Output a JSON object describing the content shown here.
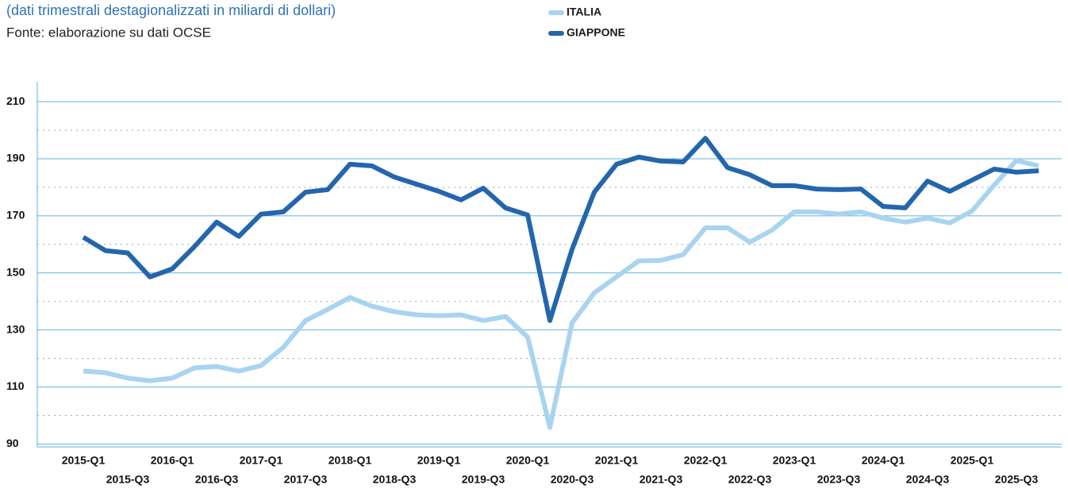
{
  "chart_data": {
    "type": "line",
    "subtitle": "(dati trimestrali destagionalizzati in miliardi di dollari)",
    "source": "Fonte: elaborazione su dati OCSE",
    "categories": [
      "2015-Q1",
      null,
      "2015-Q3",
      null,
      "2016-Q1",
      null,
      "2016-Q3",
      null,
      "2017-Q1",
      null,
      "2017-Q3",
      null,
      "2018-Q1",
      null,
      "2018-Q3",
      null,
      "2019-Q1",
      null,
      "2019-Q3",
      null,
      "2020-Q1",
      null,
      "2020-Q3",
      null,
      "2021-Q1",
      null,
      "2021-Q3",
      null,
      "2022-Q1",
      null,
      "2022-Q3",
      null,
      "2023-Q1",
      null,
      "2023-Q3",
      null,
      "2024-Q1",
      null,
      "2024-Q3",
      null,
      "2025-Q1",
      null,
      "2025-Q3",
      null
    ],
    "series": [
      {
        "name": "ITALIA",
        "color": "#a8d4f0",
        "values": [
          115.6,
          115,
          113.1,
          112.2,
          113.1,
          116.7,
          117.2,
          115.6,
          117.5,
          123.9,
          133.3,
          137.2,
          141.4,
          138.3,
          136.4,
          135.3,
          135,
          135.3,
          133.3,
          134.7,
          127.5,
          95.8,
          132.5,
          143,
          148.6,
          154.2,
          154.4,
          156.4,
          165.8,
          165.8,
          160.8,
          165,
          171.4,
          171.4,
          170.6,
          171.4,
          169.2,
          167.8,
          169.2,
          167.5,
          171.7,
          180.8,
          189.4,
          187.5
        ]
      },
      {
        "name": "GIAPPONE",
        "color": "#2466ad",
        "values": [
          162.5,
          157.8,
          157,
          148.6,
          151.4,
          159.2,
          167.8,
          162.8,
          170.6,
          171.4,
          178.3,
          179.2,
          188.1,
          187.5,
          183.6,
          181.1,
          178.6,
          175.6,
          179.7,
          172.8,
          170.3,
          133.3,
          158.3,
          178.3,
          188.1,
          190.6,
          189.2,
          188.9,
          197.2,
          186.9,
          184.4,
          180.6,
          180.6,
          179.4,
          179.2,
          179.4,
          173.3,
          172.8,
          182.2,
          178.6,
          182.5,
          186.4,
          185.3,
          185.8
        ]
      }
    ],
    "ylim": [
      89,
      217
    ],
    "yticks": [
      90,
      110,
      130,
      150,
      170,
      190,
      210
    ],
    "minor_yticks": [
      100,
      120,
      140,
      160,
      180,
      200
    ],
    "grid": true
  }
}
